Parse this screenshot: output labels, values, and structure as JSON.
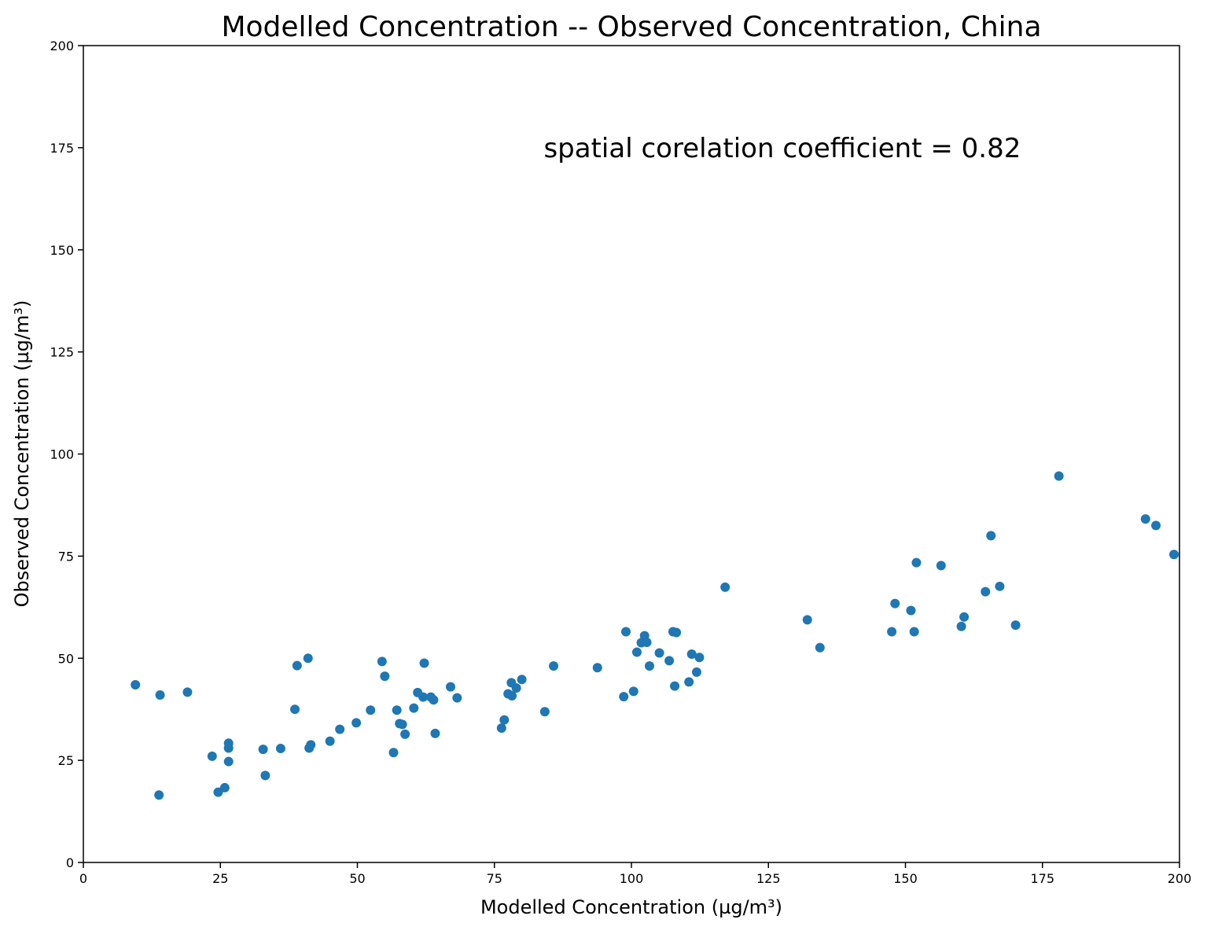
{
  "chart_data": {
    "type": "scatter",
    "title": "Modelled Concentration -- Observed Concentration, China",
    "xlabel": "Modelled Concentration (µg/m³)",
    "ylabel": "Observed Concentration (µg/m³)",
    "xlim": [
      0,
      200
    ],
    "ylim": [
      0,
      200
    ],
    "xticks": [
      0,
      25,
      50,
      75,
      100,
      125,
      150,
      175,
      200
    ],
    "yticks": [
      0,
      25,
      50,
      75,
      100,
      125,
      150,
      175,
      200
    ],
    "xtick_labels": [
      "0",
      "25",
      "50",
      "75",
      "100",
      "125",
      "150",
      "175",
      "200"
    ],
    "ytick_labels": [
      "0",
      "25",
      "50",
      "75",
      "100",
      "125",
      "150",
      "175",
      "200"
    ],
    "grid": false,
    "marker_color": "#1f77b4",
    "annotation": {
      "text": "spatial corelation coefficient = 0.82",
      "x": 84,
      "y": 175
    },
    "points": [
      [
        9.5,
        43.5
      ],
      [
        14,
        41
      ],
      [
        19,
        41.7
      ],
      [
        13.8,
        16.5
      ],
      [
        23.5,
        26
      ],
      [
        24.6,
        17.2
      ],
      [
        25.8,
        18.3
      ],
      [
        26.5,
        29.2
      ],
      [
        26.5,
        28
      ],
      [
        26.5,
        24.7
      ],
      [
        32.8,
        27.7
      ],
      [
        33.2,
        21.3
      ],
      [
        36,
        27.9
      ],
      [
        38.6,
        37.5
      ],
      [
        39,
        48.2
      ],
      [
        41,
        50
      ],
      [
        41.2,
        28
      ],
      [
        41.5,
        28.8
      ],
      [
        45,
        29.7
      ],
      [
        46.8,
        32.6
      ],
      [
        49.8,
        34.2
      ],
      [
        52.4,
        37.3
      ],
      [
        54.5,
        49.2
      ],
      [
        55,
        45.6
      ],
      [
        56.6,
        26.9
      ],
      [
        57.2,
        37.3
      ],
      [
        57.7,
        34
      ],
      [
        58.2,
        33.8
      ],
      [
        58.7,
        31.4
      ],
      [
        60.3,
        37.8
      ],
      [
        61,
        41.6
      ],
      [
        62,
        40.5
      ],
      [
        62.2,
        48.8
      ],
      [
        63.4,
        40.5
      ],
      [
        63.9,
        39.8
      ],
      [
        64.2,
        31.6
      ],
      [
        67,
        43
      ],
      [
        68.2,
        40.3
      ],
      [
        76.3,
        32.9
      ],
      [
        76.8,
        34.9
      ],
      [
        77.5,
        41.3
      ],
      [
        78.1,
        44
      ],
      [
        78.2,
        40.8
      ],
      [
        79,
        42.7
      ],
      [
        80,
        44.8
      ],
      [
        84.2,
        36.9
      ],
      [
        85.8,
        48.1
      ],
      [
        93.8,
        47.7
      ],
      [
        98.6,
        40.6
      ],
      [
        99,
        56.5
      ],
      [
        100.4,
        41.9
      ],
      [
        101,
        51.5
      ],
      [
        101.8,
        53.8
      ],
      [
        102.4,
        55.5
      ],
      [
        102.8,
        53.9
      ],
      [
        103.3,
        48.1
      ],
      [
        105.1,
        51.3
      ],
      [
        106.9,
        49.4
      ],
      [
        107.6,
        56.5
      ],
      [
        108.2,
        56.3
      ],
      [
        107.9,
        43.2
      ],
      [
        110.5,
        44.2
      ],
      [
        111,
        51
      ],
      [
        111.9,
        46.6
      ],
      [
        112.4,
        50.2
      ],
      [
        117.1,
        67.4
      ],
      [
        132.1,
        59.4
      ],
      [
        134.4,
        52.6
      ],
      [
        147.5,
        56.5
      ],
      [
        148.1,
        63.4
      ],
      [
        151,
        61.7
      ],
      [
        151.6,
        56.5
      ],
      [
        152,
        73.4
      ],
      [
        156.5,
        72.7
      ],
      [
        160.2,
        57.8
      ],
      [
        160.7,
        60.1
      ],
      [
        164.6,
        66.3
      ],
      [
        165.6,
        80
      ],
      [
        167.2,
        67.6
      ],
      [
        170.1,
        58.1
      ],
      [
        178,
        94.6
      ],
      [
        193.8,
        84.1
      ],
      [
        195.7,
        82.5
      ],
      [
        199,
        75.4
      ]
    ]
  }
}
